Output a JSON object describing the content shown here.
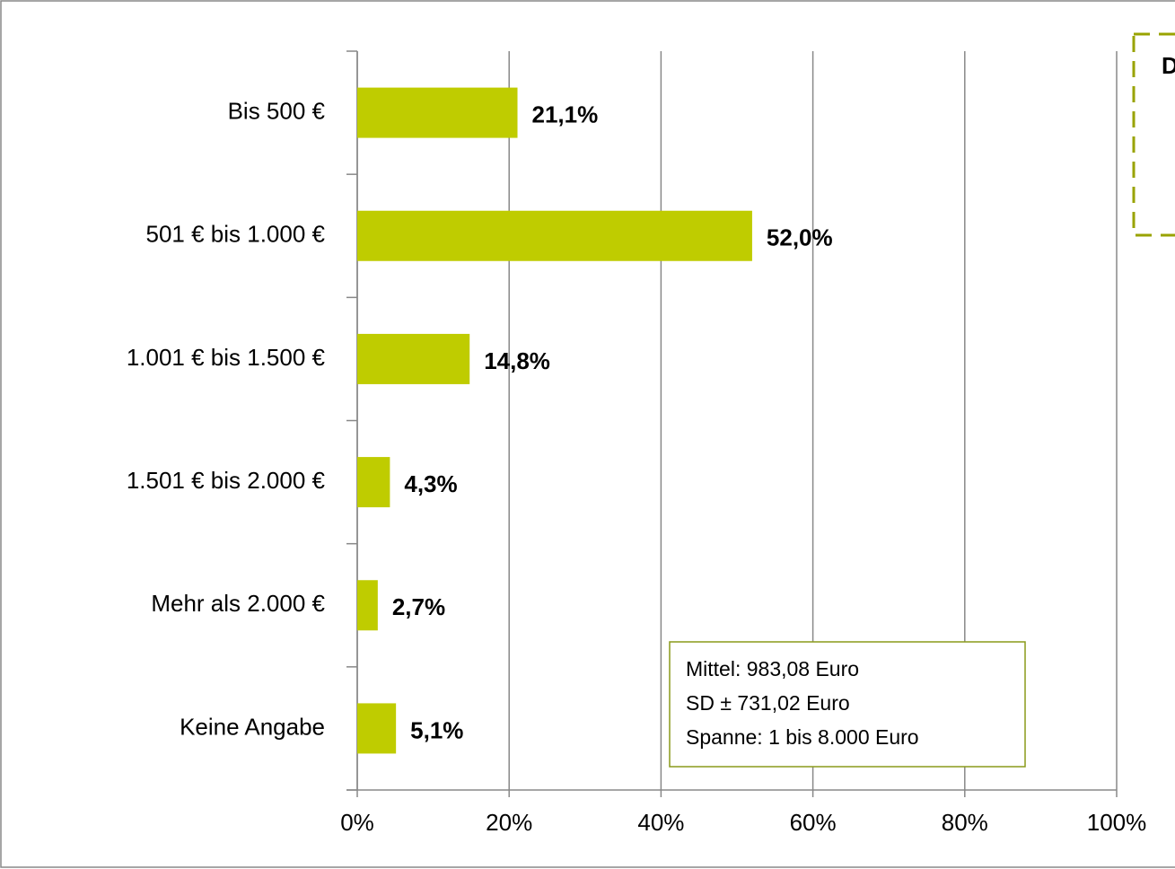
{
  "chart_data": {
    "type": "hbar",
    "categories": [
      "Bis 500 €",
      "501 € bis 1.000 €",
      "1.001 € bis 1.500 €",
      "1.501 € bis 2.000 €",
      "Mehr als 2.000 €",
      "Keine Angabe"
    ],
    "values": [
      21.1,
      52.0,
      14.8,
      4.3,
      2.7,
      5.1
    ],
    "value_labels": [
      "21,1%",
      "52,0%",
      "14,8%",
      "4,3%",
      "2,7%",
      "5,1%"
    ],
    "color": "#bfcc00",
    "xlim": [
      0,
      100
    ],
    "xticks": [
      {
        "value": 0,
        "label": "0%"
      },
      {
        "value": 20,
        "label": "20%"
      },
      {
        "value": 40,
        "label": "40%"
      },
      {
        "value": 60,
        "label": "60%"
      },
      {
        "value": 80,
        "label": "80%"
      },
      {
        "value": 100,
        "label": "100%"
      }
    ],
    "grid": true,
    "stats_box": [
      "Mittel: 983,08 Euro",
      "SD ± 731,02 Euro",
      "Spanne:  1 bis 8.000 Euro"
    ],
    "callout": "D"
  }
}
